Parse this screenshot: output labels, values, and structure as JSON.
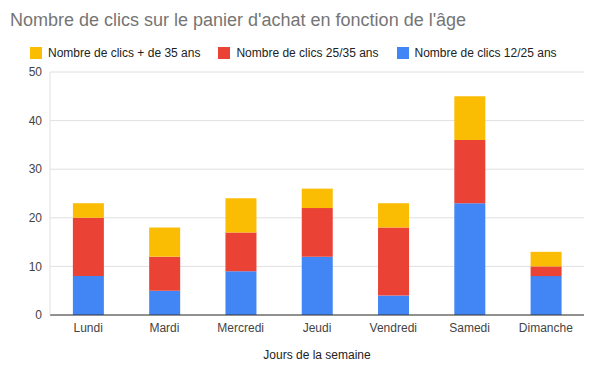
{
  "chart_data": {
    "type": "bar",
    "title": "Nombre de clics sur le panier d'achat en fonction de l'âge",
    "x_label": "Jours de la semaine",
    "categories": [
      "Lundi",
      "Mardi",
      "Mercredi",
      "Jeudi",
      "Vendredi",
      "Samedi",
      "Dimanche"
    ],
    "series": [
      {
        "name": "Nombre de clics 12/25 ans",
        "color": "#4285f4",
        "values": [
          8,
          5,
          9,
          12,
          4,
          23,
          8
        ]
      },
      {
        "name": "Nombre de clics 25/35 ans",
        "color": "#ea4335",
        "values": [
          12,
          7,
          8,
          10,
          14,
          13,
          2
        ]
      },
      {
        "name": "Nombre de clics + de 35 ans",
        "color": "#fbbc04",
        "values": [
          3,
          6,
          7,
          4,
          5,
          9,
          3
        ]
      }
    ],
    "stacked": true,
    "ylim": [
      0,
      50
    ],
    "yticks": [
      0,
      10,
      20,
      30,
      40,
      50
    ],
    "grid": true,
    "legend": "top-left"
  }
}
